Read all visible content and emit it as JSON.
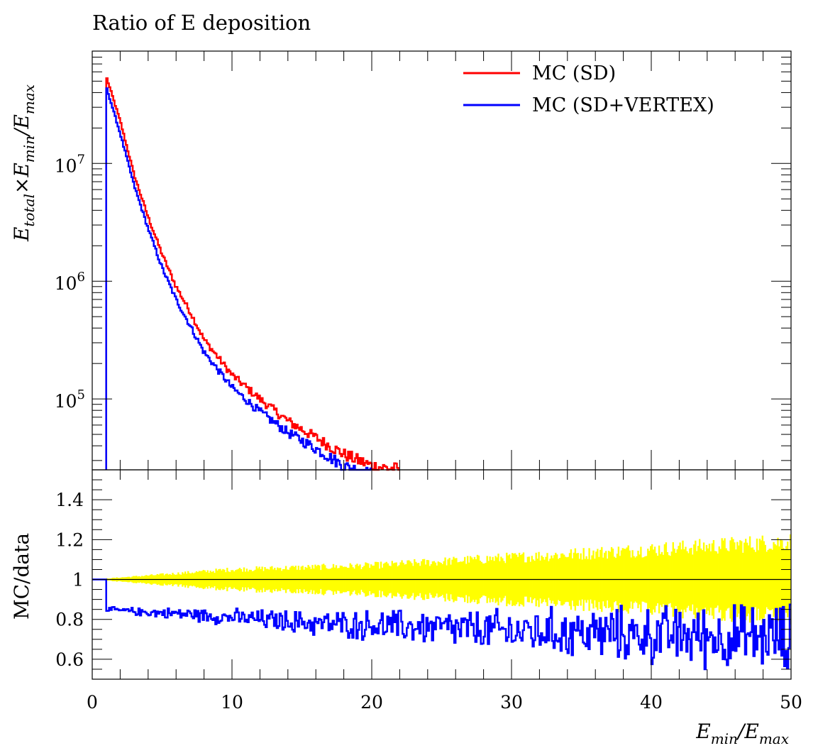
{
  "chart_data": [
    {
      "type": "line",
      "title": "Ratio of E deposition",
      "xlim": [
        0,
        50
      ],
      "ylim": [
        25000,
        90000000
      ],
      "yscale": "log",
      "grid": false,
      "xticks_shown": false,
      "ylabel": {
        "base": "E",
        "sub1": "total",
        "op": "×E",
        "sub2": "min",
        "sep": "/E",
        "sub3": "max"
      },
      "ytick_labels": [
        {
          "value": 10000000,
          "base": "10",
          "exp": "7"
        },
        {
          "value": 1000000,
          "base": "10",
          "exp": "6"
        },
        {
          "value": 100000,
          "base": "10",
          "exp": "5"
        }
      ],
      "legend": {
        "placement": "top-right",
        "entries": [
          {
            "label": "MC (SD)",
            "color": "#ff0000"
          },
          {
            "label": "MC (SD+VERTEX)",
            "color": "#0000ff"
          }
        ]
      },
      "series": [
        {
          "name": "MC (SD)",
          "color": "#ff0000",
          "x": [
            1,
            2,
            3,
            4,
            5,
            6,
            7,
            8,
            10,
            12,
            14,
            16,
            18,
            20,
            22
          ],
          "values": [
            55000000,
            23000000,
            8000000,
            3500000,
            1700000,
            900000,
            550000,
            320000,
            160000,
            100000,
            65000,
            47000,
            34000,
            27000,
            25000
          ]
        },
        {
          "name": "MC (SD+VERTEX)",
          "color": "#0000ff",
          "x": [
            1,
            2,
            3,
            4,
            5,
            6,
            7,
            8,
            10,
            12,
            14,
            16,
            18,
            20
          ],
          "values": [
            45000000,
            18000000,
            6500000,
            2800000,
            1300000,
            700000,
            420000,
            250000,
            125000,
            78000,
            52000,
            38000,
            27000,
            23000
          ]
        }
      ]
    },
    {
      "type": "line",
      "ylabel": "MC/data",
      "xlabel": {
        "base": "E",
        "sub1": "min",
        "sep": "/E",
        "sub2": "max"
      },
      "xlim": [
        0,
        50
      ],
      "ylim": [
        0.5,
        1.55
      ],
      "grid": false,
      "xtick_labels": [
        "0",
        "10",
        "20",
        "30",
        "40",
        "50"
      ],
      "ytick_labels": [
        "1.4",
        "1.2",
        "1",
        "0.8",
        "0.6"
      ],
      "reference_line": 1,
      "uncertainty_band": {
        "color": "#ffff00",
        "x": [
          1,
          10,
          20,
          30,
          40,
          50
        ],
        "half_width": [
          0.005,
          0.05,
          0.07,
          0.11,
          0.15,
          0.19
        ]
      },
      "series": [
        {
          "name": "MC (SD+VERTEX)",
          "color": "#0000ff",
          "x": [
            0,
            1,
            2,
            4,
            6,
            8,
            10,
            12,
            14,
            16,
            18,
            20,
            22,
            24,
            26,
            28,
            30,
            32,
            34,
            36,
            38,
            40,
            42,
            44,
            46,
            48,
            50
          ],
          "values": [
            1.0,
            0.85,
            0.845,
            0.835,
            0.83,
            0.82,
            0.81,
            0.8,
            0.79,
            0.78,
            0.775,
            0.77,
            0.765,
            0.76,
            0.75,
            0.745,
            0.74,
            0.74,
            0.735,
            0.73,
            0.725,
            0.72,
            0.72,
            0.715,
            0.71,
            0.71,
            0.705
          ]
        }
      ]
    }
  ]
}
